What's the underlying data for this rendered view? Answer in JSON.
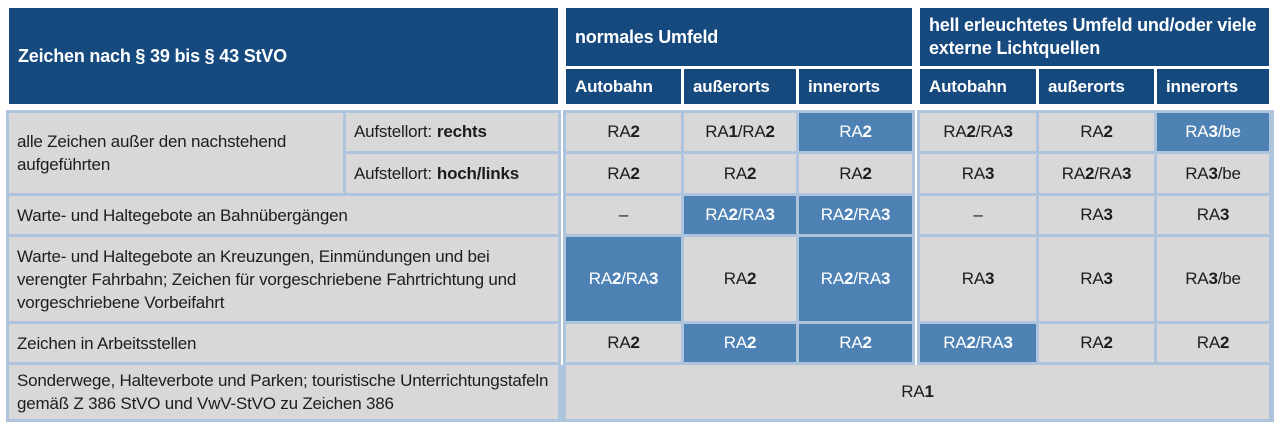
{
  "colors": {
    "header_bg": "#164a7f",
    "highlight_bg": "#4e82b4",
    "cell_bg": "#d8d8d8",
    "grid_border": "#adc4dc",
    "header_text": "#ffffff",
    "body_text": "#1d1d1b"
  },
  "header": {
    "title": "Zeichen nach § 39 bis § 43 StVO",
    "groups": [
      {
        "label": "normales Umfeld",
        "columns": [
          "Autobahn",
          "außerorts",
          "innerorts"
        ]
      },
      {
        "label": "hell erleuchtetes Umfeld und/oder viele externe Lichtquellen",
        "columns": [
          "Autobahn",
          "außerorts",
          "innerorts"
        ]
      }
    ]
  },
  "rows": [
    {
      "label": "alle Zeichen außer den nachstehend aufgeführten",
      "label_rowspan": 2,
      "sub_prefix": "Aufstellort:",
      "sub_bold": "rechts",
      "cells": [
        {
          "v": "RA2"
        },
        {
          "v": "RA1/RA2"
        },
        {
          "v": "RA2",
          "hl": true
        },
        {
          "v": "RA2/RA3"
        },
        {
          "v": "RA2"
        },
        {
          "v": "RA3/be",
          "hl": true
        }
      ]
    },
    {
      "sub_prefix": "Aufstellort:",
      "sub_bold": "hoch/links",
      "cells": [
        {
          "v": "RA2"
        },
        {
          "v": "RA2"
        },
        {
          "v": "RA2"
        },
        {
          "v": "RA3"
        },
        {
          "v": "RA2/RA3"
        },
        {
          "v": "RA3/be"
        }
      ]
    },
    {
      "label": "Warte- und Haltegebote an Bahnübergängen",
      "full_label": true,
      "cells": [
        {
          "v": "–"
        },
        {
          "v": "RA2/RA3",
          "hl": true
        },
        {
          "v": "RA2/RA3",
          "hl": true
        },
        {
          "v": "–"
        },
        {
          "v": "RA3"
        },
        {
          "v": "RA3"
        }
      ]
    },
    {
      "label": "Warte- und Haltegebote an Kreuzungen, Einmündungen und bei verengter Fahrbahn; Zeichen für vorgeschriebene Fahrtrichtung und vorgeschriebene Vorbeifahrt",
      "full_label": true,
      "cells": [
        {
          "v": "RA2/RA3",
          "hl": true
        },
        {
          "v": "RA2"
        },
        {
          "v": "RA2/RA3",
          "hl": true
        },
        {
          "v": "RA3"
        },
        {
          "v": "RA3"
        },
        {
          "v": "RA3/be"
        }
      ]
    },
    {
      "label": "Zeichen in Arbeitsstellen",
      "full_label": true,
      "cells": [
        {
          "v": "RA2"
        },
        {
          "v": "RA2",
          "hl": true
        },
        {
          "v": "RA2",
          "hl": true
        },
        {
          "v": "RA2/RA3",
          "hl": true
        },
        {
          "v": "RA2"
        },
        {
          "v": "RA2"
        }
      ]
    },
    {
      "label": "Sonderwege, Halteverbote und Parken; touristische Unterrich­tungstafeln gemäß Z 386 StVO und VwV-StVO zu Zeichen 386",
      "full_label": true,
      "span_all": true,
      "cells": [
        {
          "v": "RA1"
        }
      ]
    }
  ]
}
